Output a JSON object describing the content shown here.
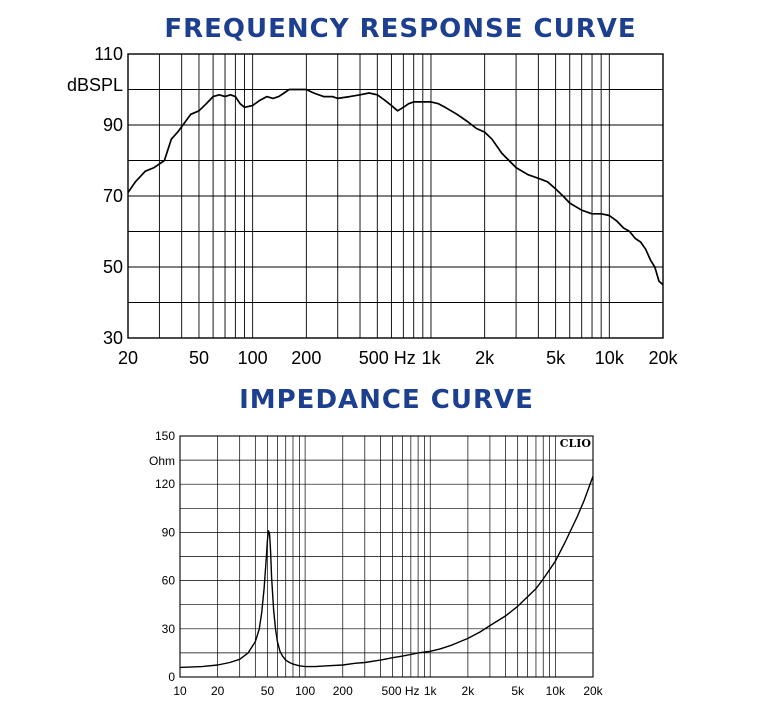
{
  "charts_titles": {
    "frequency": "FREQUENCY RESPONSE CURVE",
    "impedance": "IMPEDANCE CURVE"
  },
  "chart_data": [
    {
      "type": "line",
      "title": "FREQUENCY RESPONSE CURVE",
      "ylabel": "dBSPL",
      "x_scale": "log",
      "xlim": [
        20,
        20000
      ],
      "ylim": [
        30,
        110
      ],
      "yticks": [
        {
          "v": 30,
          "label": "30"
        },
        {
          "v": 50,
          "label": "50"
        },
        {
          "v": 70,
          "label": "70"
        },
        {
          "v": 90,
          "label": "90"
        },
        {
          "v": 110,
          "label": "110"
        }
      ],
      "xticks": [
        {
          "v": 20,
          "label": "20"
        },
        {
          "v": 50,
          "label": "50"
        },
        {
          "v": 100,
          "label": "100"
        },
        {
          "v": 200,
          "label": "200"
        },
        {
          "v": 500,
          "label": "500 Hz"
        },
        {
          "v": 1000,
          "label": "1k"
        },
        {
          "v": 2000,
          "label": "2k"
        },
        {
          "v": 5000,
          "label": "5k"
        },
        {
          "v": 10000,
          "label": "10k"
        },
        {
          "v": 20000,
          "label": "20k"
        }
      ],
      "grid": true,
      "color": "#000000",
      "series": [
        {
          "x": [
            20,
            22,
            25,
            28,
            32,
            35,
            38,
            42,
            45,
            50,
            55,
            60,
            65,
            70,
            75,
            80,
            85,
            90,
            100,
            110,
            120,
            130,
            140,
            150,
            160,
            180,
            200,
            220,
            250,
            280,
            300,
            350,
            400,
            450,
            500,
            550,
            600,
            650,
            700,
            750,
            800,
            900,
            1000,
            1100,
            1200,
            1400,
            1600,
            1800,
            2000,
            2200,
            2500,
            3000,
            3500,
            4000,
            4500,
            5000,
            5500,
            6000,
            7000,
            8000,
            9000,
            10000,
            11000,
            12000,
            13000,
            14000,
            15000,
            16000,
            17000,
            18000,
            19000,
            20000
          ],
          "y": [
            71,
            74,
            77,
            78,
            80,
            86,
            88,
            91,
            93,
            94,
            96,
            98,
            98.5,
            98,
            98.5,
            98,
            96,
            95,
            95.5,
            97,
            98,
            97.5,
            98,
            99,
            100,
            100,
            100,
            99,
            98,
            98,
            97.5,
            98,
            98.5,
            99,
            98.5,
            97,
            95.5,
            94,
            95,
            96,
            96.5,
            96.5,
            96.5,
            96,
            95,
            93,
            91,
            89,
            88,
            86,
            82,
            78,
            76,
            75,
            74,
            72,
            70,
            68,
            66,
            65,
            65,
            64.5,
            63,
            61,
            60,
            58,
            57,
            55,
            52,
            50,
            46,
            45
          ]
        }
      ]
    },
    {
      "type": "line",
      "title": "IMPEDANCE CURVE",
      "ylabel": "Ohm",
      "x_scale": "log",
      "xlim": [
        10,
        20000
      ],
      "ylim": [
        0,
        150
      ],
      "yticks": [
        {
          "v": 0,
          "label": "0"
        },
        {
          "v": 30,
          "label": "30"
        },
        {
          "v": 60,
          "label": "60"
        },
        {
          "v": 90,
          "label": "90"
        },
        {
          "v": 120,
          "label": "120"
        },
        {
          "v": 150,
          "label": "150"
        }
      ],
      "xticks": [
        {
          "v": 10,
          "label": "10"
        },
        {
          "v": 20,
          "label": "20"
        },
        {
          "v": 50,
          "label": "50"
        },
        {
          "v": 100,
          "label": "100"
        },
        {
          "v": 200,
          "label": "200"
        },
        {
          "v": 500,
          "label": "500 Hz"
        },
        {
          "v": 1000,
          "label": "1k"
        },
        {
          "v": 2000,
          "label": "2k"
        },
        {
          "v": 5000,
          "label": "5k"
        },
        {
          "v": 10000,
          "label": "10k"
        },
        {
          "v": 20000,
          "label": "20k"
        }
      ],
      "grid": true,
      "annotation": "CLIO",
      "color": "#000000",
      "series": [
        {
          "x": [
            10,
            15,
            20,
            25,
            30,
            35,
            40,
            43,
            45,
            47,
            49,
            50,
            51,
            52,
            53,
            54,
            56,
            58,
            60,
            63,
            66,
            70,
            75,
            80,
            90,
            100,
            120,
            150,
            200,
            250,
            300,
            400,
            500,
            600,
            700,
            800,
            900,
            1000,
            1200,
            1500,
            2000,
            2500,
            3000,
            4000,
            5000,
            6000,
            7000,
            8000,
            10000,
            12000,
            15000,
            17000,
            20000
          ],
          "y": [
            6,
            6.5,
            7.5,
            9,
            11,
            15,
            22,
            30,
            40,
            55,
            75,
            85,
            91,
            89,
            78,
            62,
            42,
            30,
            22,
            16,
            13,
            10.5,
            9,
            8,
            7,
            6.5,
            6.5,
            7,
            7.5,
            8.5,
            9,
            10.5,
            12,
            13,
            14,
            15,
            15.5,
            16,
            17.5,
            20,
            24,
            28,
            32,
            38,
            44,
            50,
            55,
            61,
            72,
            84,
            100,
            110,
            125
          ]
        }
      ]
    }
  ]
}
